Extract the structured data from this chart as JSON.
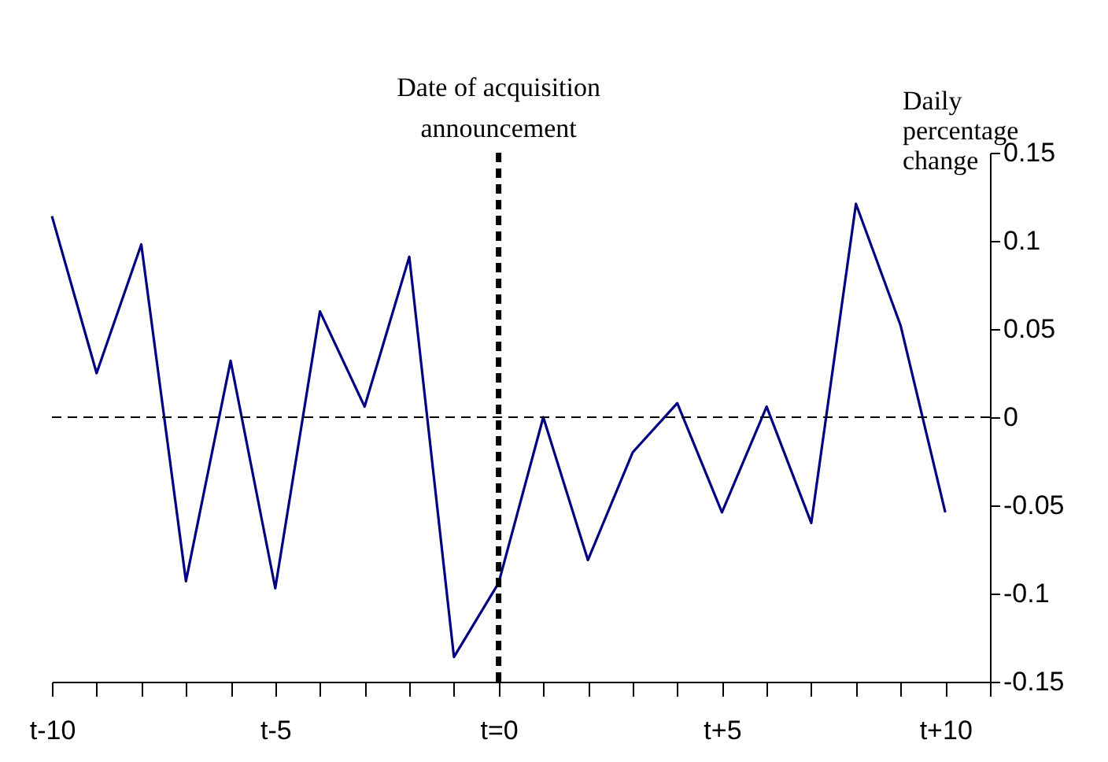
{
  "chart_data": {
    "type": "line",
    "ylabel": "Daily percentage change",
    "categories": [
      "t-10",
      null,
      null,
      null,
      null,
      "t-5",
      null,
      null,
      null,
      null,
      "t=0",
      null,
      null,
      null,
      null,
      "t+5",
      null,
      null,
      null,
      null,
      "t+10"
    ],
    "series": [
      {
        "color": "#000080",
        "values": [
          0.114,
          0.025,
          0.098,
          -0.093,
          0.032,
          -0.097,
          0.06,
          0.006,
          0.091,
          -0.136,
          -0.094,
          0.0,
          -0.081,
          -0.02,
          0.008,
          -0.054,
          0.006,
          -0.06,
          0.121,
          0.052,
          -0.054
        ]
      }
    ],
    "ylim": [
      -0.15,
      0.15
    ],
    "yticks": [
      -0.15,
      -0.1,
      -0.05,
      0,
      0.05,
      0.1,
      0.15
    ],
    "ref_lines": [
      {
        "axis": "y",
        "value": 0,
        "color": "#000000",
        "line_style": "dashed"
      },
      {
        "axis": "x",
        "value": "t=0",
        "label": "Date of acquisition announcement",
        "color": "#000000",
        "line_style": "dashed"
      }
    ],
    "grid": false,
    "marker": "none",
    "line_style": "solid"
  }
}
